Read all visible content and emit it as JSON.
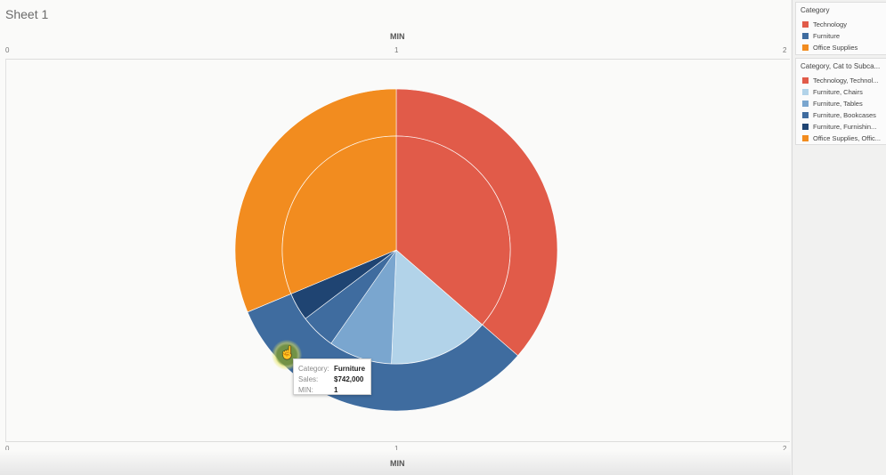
{
  "sheet": {
    "title": "Sheet 1"
  },
  "axes": {
    "top_title": "MIN",
    "bottom_title": "MIN",
    "top_ticks": [
      "0",
      "1",
      "2"
    ],
    "bottom_ticks": [
      "0",
      "1",
      "2"
    ]
  },
  "legend_category": {
    "title": "Category",
    "items": [
      {
        "label": "Technology",
        "color": "#e15b49"
      },
      {
        "label": "Furniture",
        "color": "#3f6c9f"
      },
      {
        "label": "Office Supplies",
        "color": "#f28c1f"
      }
    ]
  },
  "legend_subcategory": {
    "title": "Category, Cat to Subca...",
    "items": [
      {
        "label": "Technology, Technol...",
        "color": "#e15b49"
      },
      {
        "label": "Furniture, Chairs",
        "color": "#b2d3e9"
      },
      {
        "label": "Furniture, Tables",
        "color": "#7aa6cf"
      },
      {
        "label": "Furniture, Bookcases",
        "color": "#3f6c9f"
      },
      {
        "label": "Furniture, Furnishin...",
        "color": "#1f4472"
      },
      {
        "label": "Office Supplies, Offic...",
        "color": "#f28c1f"
      }
    ]
  },
  "tooltip": {
    "rows": [
      {
        "key": "Category:",
        "value": "Furniture"
      },
      {
        "key": "Sales:",
        "value": "$742,000"
      },
      {
        "key": "MIN:",
        "value": "1"
      }
    ]
  },
  "chart_data": {
    "type": "pie",
    "x_axis": {
      "label": "MIN",
      "range": [
        0,
        2
      ]
    },
    "outer_ring": {
      "slices": [
        {
          "name": "Technology",
          "value": 836000,
          "color": "#e15b49"
        },
        {
          "name": "Furniture",
          "value": 742000,
          "color": "#3f6c9f"
        },
        {
          "name": "Office Supplies",
          "value": 719000,
          "color": "#f28c1f"
        }
      ]
    },
    "inner_pie": {
      "slices": [
        {
          "name": "Technology, Technology",
          "value": 836000,
          "color": "#e15b49"
        },
        {
          "name": "Furniture, Chairs",
          "value": 328000,
          "color": "#b2d3e9"
        },
        {
          "name": "Furniture, Tables",
          "value": 207000,
          "color": "#7aa6cf"
        },
        {
          "name": "Furniture, Bookcases",
          "value": 115000,
          "color": "#3f6c9f"
        },
        {
          "name": "Furniture, Furnishings",
          "value": 92000,
          "color": "#1f4472"
        },
        {
          "name": "Office Supplies, Office Supplies",
          "value": 719000,
          "color": "#f28c1f"
        }
      ]
    }
  }
}
